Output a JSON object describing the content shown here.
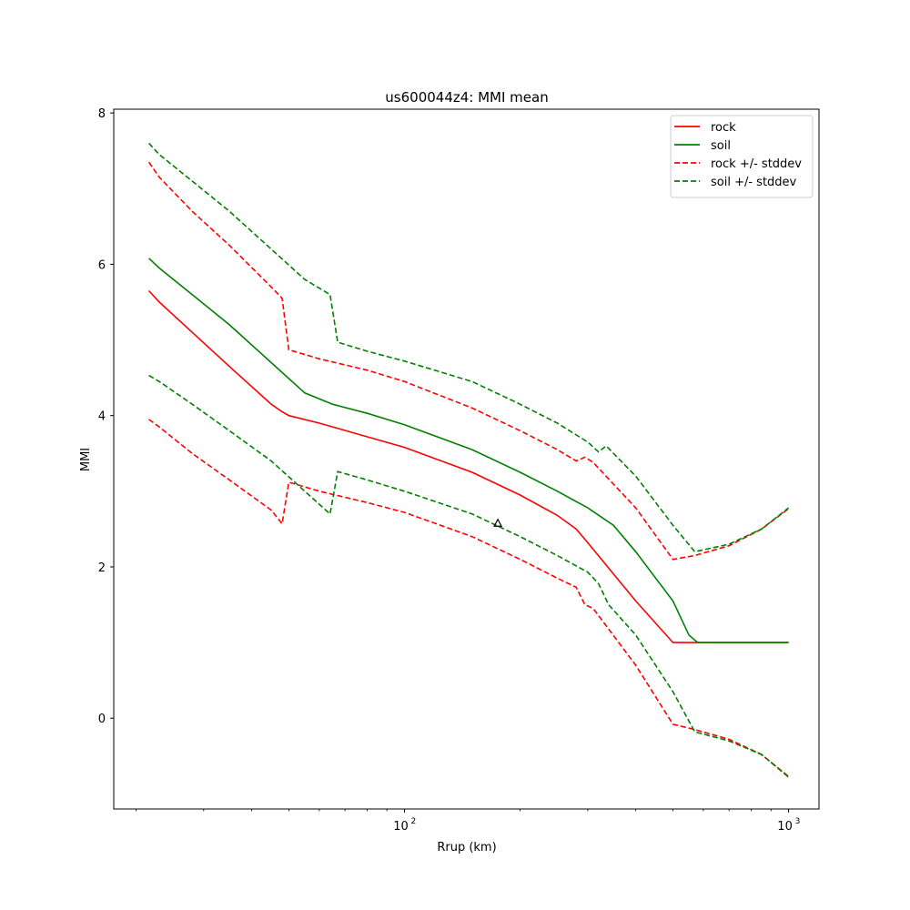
{
  "chart_data": {
    "type": "line",
    "title": "us600044z4: MMI mean",
    "xlabel": "Rrup (km)",
    "ylabel": "MMI",
    "xscale": "log",
    "xlim": [
      17.5,
      1200
    ],
    "ylim": [
      -1.2,
      8.05
    ],
    "xticks": [
      {
        "value": 100,
        "base": "10",
        "exp": "2"
      },
      {
        "value": 1000,
        "base": "10",
        "exp": "3"
      }
    ],
    "yticks": [
      {
        "value": 0,
        "label": "0"
      },
      {
        "value": 2,
        "label": "2"
      },
      {
        "value": 4,
        "label": "4"
      },
      {
        "value": 6,
        "label": "6"
      },
      {
        "value": 8,
        "label": "8"
      }
    ],
    "grid": false,
    "legend_position": "top-right",
    "series": [
      {
        "name": "rock",
        "color": "#ff0000",
        "dash": false,
        "points": [
          [
            21.6,
            5.65
          ],
          [
            23,
            5.5
          ],
          [
            28,
            5.1
          ],
          [
            35,
            4.65
          ],
          [
            45,
            4.15
          ],
          [
            48,
            4.05
          ],
          [
            50,
            4.0
          ],
          [
            60,
            3.9
          ],
          [
            80,
            3.72
          ],
          [
            100,
            3.58
          ],
          [
            150,
            3.25
          ],
          [
            200,
            2.95
          ],
          [
            250,
            2.68
          ],
          [
            280,
            2.5
          ],
          [
            300,
            2.32
          ],
          [
            400,
            1.55
          ],
          [
            500,
            1.0
          ],
          [
            570,
            1.0
          ],
          [
            1000,
            1.0
          ]
        ]
      },
      {
        "name": "soil",
        "color": "#008000",
        "dash": false,
        "points": [
          [
            21.6,
            6.08
          ],
          [
            23,
            5.95
          ],
          [
            28,
            5.6
          ],
          [
            35,
            5.2
          ],
          [
            45,
            4.7
          ],
          [
            55,
            4.3
          ],
          [
            65,
            4.15
          ],
          [
            80,
            4.03
          ],
          [
            100,
            3.88
          ],
          [
            150,
            3.55
          ],
          [
            200,
            3.25
          ],
          [
            250,
            3.0
          ],
          [
            300,
            2.78
          ],
          [
            350,
            2.55
          ],
          [
            400,
            2.2
          ],
          [
            500,
            1.55
          ],
          [
            550,
            1.1
          ],
          [
            580,
            1.0
          ],
          [
            1000,
            1.0
          ]
        ]
      },
      {
        "name": "rock +/- stddev",
        "color": "#ff0000",
        "dash": true,
        "points": [
          [
            21.6,
            7.35
          ],
          [
            23,
            7.15
          ],
          [
            28,
            6.7
          ],
          [
            35,
            6.25
          ],
          [
            45,
            5.7
          ],
          [
            48,
            5.55
          ],
          [
            50,
            4.87
          ],
          [
            60,
            4.75
          ],
          [
            80,
            4.6
          ],
          [
            100,
            4.45
          ],
          [
            150,
            4.1
          ],
          [
            200,
            3.8
          ],
          [
            250,
            3.55
          ],
          [
            280,
            3.4
          ],
          [
            295,
            3.45
          ],
          [
            310,
            3.38
          ],
          [
            400,
            2.78
          ],
          [
            500,
            2.1
          ],
          [
            570,
            2.15
          ],
          [
            700,
            2.28
          ],
          [
            850,
            2.5
          ],
          [
            1000,
            2.77
          ]
        ]
      },
      {
        "name": "",
        "color": "#ff0000",
        "dash": true,
        "points": [
          [
            21.6,
            3.95
          ],
          [
            23,
            3.85
          ],
          [
            28,
            3.5
          ],
          [
            35,
            3.15
          ],
          [
            45,
            2.75
          ],
          [
            48,
            2.57
          ],
          [
            50,
            3.12
          ],
          [
            60,
            3.0
          ],
          [
            80,
            2.85
          ],
          [
            100,
            2.72
          ],
          [
            150,
            2.4
          ],
          [
            200,
            2.1
          ],
          [
            250,
            1.85
          ],
          [
            280,
            1.73
          ],
          [
            295,
            1.5
          ],
          [
            310,
            1.45
          ],
          [
            400,
            0.7
          ],
          [
            500,
            -0.08
          ],
          [
            570,
            -0.15
          ],
          [
            700,
            -0.28
          ],
          [
            850,
            -0.48
          ],
          [
            1000,
            -0.77
          ]
        ]
      },
      {
        "name": "soil +/- stddev",
        "color": "#008000",
        "dash": true,
        "points": [
          [
            21.6,
            7.6
          ],
          [
            23,
            7.45
          ],
          [
            28,
            7.1
          ],
          [
            35,
            6.7
          ],
          [
            45,
            6.2
          ],
          [
            55,
            5.8
          ],
          [
            64,
            5.6
          ],
          [
            67,
            4.97
          ],
          [
            80,
            4.85
          ],
          [
            100,
            4.72
          ],
          [
            150,
            4.45
          ],
          [
            200,
            4.15
          ],
          [
            250,
            3.9
          ],
          [
            300,
            3.65
          ],
          [
            320,
            3.52
          ],
          [
            335,
            3.6
          ],
          [
            400,
            3.2
          ],
          [
            500,
            2.55
          ],
          [
            570,
            2.2
          ],
          [
            700,
            2.3
          ],
          [
            850,
            2.5
          ],
          [
            1000,
            2.78
          ]
        ]
      },
      {
        "name": "",
        "color": "#008000",
        "dash": true,
        "points": [
          [
            21.6,
            4.53
          ],
          [
            23,
            4.45
          ],
          [
            28,
            4.15
          ],
          [
            35,
            3.8
          ],
          [
            45,
            3.4
          ],
          [
            55,
            3.0
          ],
          [
            64,
            2.7
          ],
          [
            67,
            3.26
          ],
          [
            80,
            3.15
          ],
          [
            100,
            3.0
          ],
          [
            150,
            2.7
          ],
          [
            200,
            2.4
          ],
          [
            250,
            2.15
          ],
          [
            300,
            1.93
          ],
          [
            320,
            1.78
          ],
          [
            340,
            1.5
          ],
          [
            400,
            1.1
          ],
          [
            500,
            0.35
          ],
          [
            570,
            -0.18
          ],
          [
            700,
            -0.3
          ],
          [
            850,
            -0.48
          ],
          [
            1000,
            -0.78
          ]
        ]
      }
    ],
    "annotations": [
      {
        "type": "triangle-marker",
        "x": 175,
        "y": 2.58,
        "color": "#000000"
      }
    ]
  }
}
